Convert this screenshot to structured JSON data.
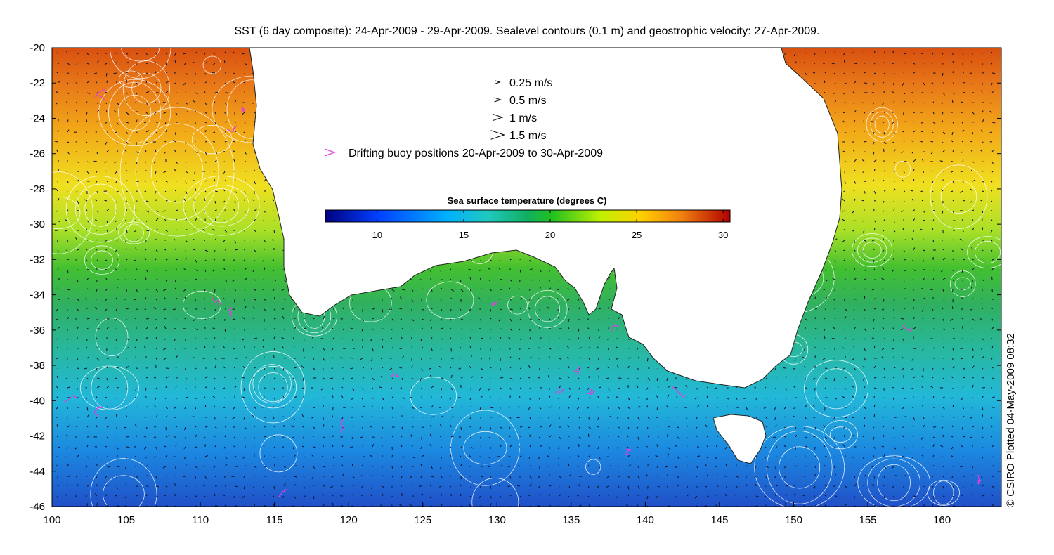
{
  "title": "SST (6 day composite): 24-Apr-2009 - 29-Apr-2009. Sealevel contours (0.1 m) and geostrophic velocity: 27-Apr-2009.",
  "credit": "© CSIRO Plotted 04-May-2009 08:32",
  "axes": {
    "x_ticks": [
      "100",
      "105",
      "110",
      "115",
      "120",
      "125",
      "130",
      "135",
      "140",
      "145",
      "150",
      "155",
      "160"
    ],
    "y_ticks": [
      "-20",
      "-22",
      "-24",
      "-26",
      "-28",
      "-30",
      "-32",
      "-34",
      "-36",
      "-38",
      "-40",
      "-42",
      "-44",
      "-46"
    ],
    "lon_range": [
      100,
      164
    ],
    "lat_range": [
      -46,
      -20
    ]
  },
  "legend": {
    "arrow_scale": [
      {
        "label": "0.25 m/s",
        "speed": 0.25
      },
      {
        "label": "0.5 m/s",
        "speed": 0.5
      },
      {
        "label": "1 m/s",
        "speed": 1
      },
      {
        "label": "1.5 m/s",
        "speed": 1.5
      }
    ],
    "buoy_label": "Drifting buoy positions 20-Apr-2009 to 30-Apr-2009",
    "buoy_color": "#e040e0"
  },
  "colorbar": {
    "title": "Sea surface temperature (degrees C)",
    "ticks": [
      "10",
      "15",
      "20",
      "25",
      "30"
    ],
    "range": [
      7,
      30.4
    ]
  },
  "colors": {
    "land": "#ffffff",
    "contour": "#ffffff",
    "arrow": "#101030",
    "buoy": "#e040e0"
  }
}
